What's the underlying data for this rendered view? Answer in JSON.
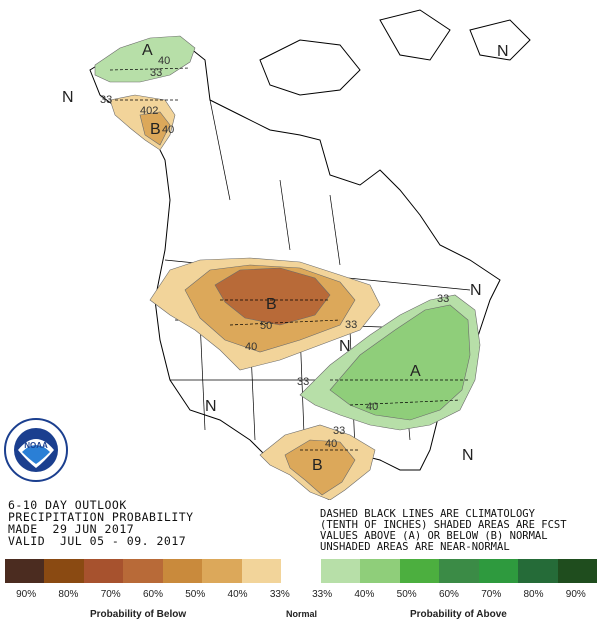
{
  "map": {
    "letters": {
      "A_alaska": "A",
      "N_alaska": "N",
      "B_alaska": "B",
      "B_plains": "B",
      "N_west": "N",
      "N_central": "N",
      "A_east": "A",
      "N_east": "N",
      "N_northeast": "N",
      "B_texas": "B",
      "N_florida": "N"
    },
    "contours": {
      "c40_alaska": "40",
      "c33_alaska": "33",
      "c33_alaska2": "33",
      "c40_alaska_b": "402",
      "c40_alaska_b2": "40",
      "c50_plains": "50",
      "c40_plains": "40",
      "c33_plains": "33",
      "c33_east": "33",
      "c40_east": "40",
      "c33_ne": "33",
      "c40_texas": "40",
      "c33_texas": "33"
    }
  },
  "header": {
    "line1": "6-10 DAY OUTLOOK",
    "line2": "PRECIPITATION PROBABILITY",
    "line3": "MADE  29 JUN 2017",
    "line4": "VALID  JUL 05 - 09. 2017"
  },
  "note": {
    "line1": "DASHED BLACK LINES ARE CLIMATOLOGY",
    "line2": "(TENTH OF INCHES) SHADED AREAS ARE FCST",
    "line3": "VALUES ABOVE (A) OR BELOW (B) NORMAL",
    "line4": "UNSHADED AREAS ARE NEAR-NORMAL"
  },
  "legend": {
    "colors": [
      "#4b2c20",
      "#8a4a12",
      "#a7522e",
      "#b86a38",
      "#c98a3c",
      "#dca85a",
      "#f2d49a",
      "#ffffff",
      "#b7dfa8",
      "#8fce7a",
      "#4caf3f",
      "#3b8b46",
      "#2e9a3e",
      "#256b38",
      "#1f4d1e"
    ],
    "ticks": [
      "90%",
      "80%",
      "70%",
      "60%",
      "50%",
      "40%",
      "33%",
      "33%",
      "40%",
      "50%",
      "60%",
      "70%",
      "80%",
      "90%"
    ],
    "below_label": "Probability of Below",
    "normal_label": "Normal",
    "above_label": "Probability of Above"
  }
}
